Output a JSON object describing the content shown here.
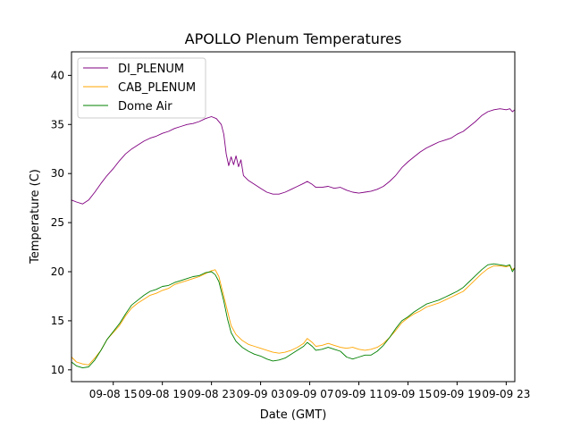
{
  "chart_data": {
    "type": "line",
    "title": "APOLLO Plenum Temperatures",
    "xlabel": "Date (GMT)",
    "ylabel": "Temperature (C)",
    "xlim": [
      11.6,
      47.7
    ],
    "ylim": [
      8.8,
      42.4
    ],
    "xticks": [
      {
        "value": 15,
        "label": "09-08 15"
      },
      {
        "value": 19,
        "label": "09-08 19"
      },
      {
        "value": 23,
        "label": "09-08 23"
      },
      {
        "value": 27,
        "label": "09-09 03"
      },
      {
        "value": 31,
        "label": "09-09 07"
      },
      {
        "value": 35,
        "label": "09-09 11"
      },
      {
        "value": 39,
        "label": "09-09 15"
      },
      {
        "value": 43,
        "label": "09-09 19"
      },
      {
        "value": 47,
        "label": "09-09 23"
      }
    ],
    "yticks": [
      10,
      15,
      20,
      25,
      30,
      35,
      40
    ],
    "legend_position": "top-left",
    "series": [
      {
        "name": "DI_PLENUM",
        "color": "#800080",
        "points": [
          [
            11.6,
            27.3
          ],
          [
            12.0,
            27.1
          ],
          [
            12.5,
            26.9
          ],
          [
            13.0,
            27.3
          ],
          [
            13.5,
            28.1
          ],
          [
            14.0,
            29.0
          ],
          [
            14.5,
            29.8
          ],
          [
            15.0,
            30.5
          ],
          [
            15.5,
            31.3
          ],
          [
            16.0,
            32.0
          ],
          [
            16.5,
            32.5
          ],
          [
            17.0,
            32.9
          ],
          [
            17.5,
            33.3
          ],
          [
            18.0,
            33.6
          ],
          [
            18.5,
            33.8
          ],
          [
            19.0,
            34.1
          ],
          [
            19.5,
            34.3
          ],
          [
            20.0,
            34.6
          ],
          [
            20.5,
            34.8
          ],
          [
            21.0,
            35.0
          ],
          [
            21.5,
            35.1
          ],
          [
            22.0,
            35.3
          ],
          [
            22.5,
            35.6
          ],
          [
            23.0,
            35.8
          ],
          [
            23.4,
            35.6
          ],
          [
            23.8,
            35.0
          ],
          [
            24.0,
            34.0
          ],
          [
            24.2,
            32.0
          ],
          [
            24.4,
            30.8
          ],
          [
            24.6,
            31.7
          ],
          [
            24.8,
            30.9
          ],
          [
            25.0,
            31.8
          ],
          [
            25.2,
            30.7
          ],
          [
            25.4,
            31.4
          ],
          [
            25.6,
            29.8
          ],
          [
            26.0,
            29.3
          ],
          [
            26.5,
            28.9
          ],
          [
            27.0,
            28.5
          ],
          [
            27.5,
            28.1
          ],
          [
            28.0,
            27.9
          ],
          [
            28.5,
            27.9
          ],
          [
            29.0,
            28.1
          ],
          [
            29.5,
            28.4
          ],
          [
            30.0,
            28.7
          ],
          [
            30.5,
            29.0
          ],
          [
            30.8,
            29.2
          ],
          [
            31.2,
            28.9
          ],
          [
            31.5,
            28.6
          ],
          [
            32.0,
            28.6
          ],
          [
            32.5,
            28.7
          ],
          [
            33.0,
            28.5
          ],
          [
            33.5,
            28.6
          ],
          [
            34.0,
            28.3
          ],
          [
            34.5,
            28.1
          ],
          [
            35.0,
            28.0
          ],
          [
            35.5,
            28.1
          ],
          [
            36.0,
            28.2
          ],
          [
            36.5,
            28.4
          ],
          [
            37.0,
            28.7
          ],
          [
            37.5,
            29.2
          ],
          [
            38.0,
            29.8
          ],
          [
            38.5,
            30.6
          ],
          [
            39.0,
            31.2
          ],
          [
            39.5,
            31.7
          ],
          [
            40.0,
            32.2
          ],
          [
            40.5,
            32.6
          ],
          [
            41.0,
            32.9
          ],
          [
            41.5,
            33.2
          ],
          [
            42.0,
            33.4
          ],
          [
            42.5,
            33.6
          ],
          [
            43.0,
            34.0
          ],
          [
            43.5,
            34.3
          ],
          [
            44.0,
            34.8
          ],
          [
            44.5,
            35.3
          ],
          [
            45.0,
            35.9
          ],
          [
            45.5,
            36.3
          ],
          [
            46.0,
            36.5
          ],
          [
            46.5,
            36.6
          ],
          [
            47.0,
            36.5
          ],
          [
            47.3,
            36.6
          ],
          [
            47.5,
            36.3
          ],
          [
            47.7,
            36.5
          ]
        ]
      },
      {
        "name": "CAB_PLENUM",
        "color": "#FFA500",
        "points": [
          [
            11.6,
            11.3
          ],
          [
            12.0,
            10.8
          ],
          [
            12.5,
            10.6
          ],
          [
            13.0,
            10.5
          ],
          [
            13.5,
            11.2
          ],
          [
            14.0,
            12.0
          ],
          [
            14.5,
            13.1
          ],
          [
            15.0,
            13.8
          ],
          [
            15.5,
            14.5
          ],
          [
            16.0,
            15.5
          ],
          [
            16.5,
            16.3
          ],
          [
            17.0,
            16.8
          ],
          [
            17.5,
            17.2
          ],
          [
            18.0,
            17.6
          ],
          [
            18.5,
            17.8
          ],
          [
            19.0,
            18.1
          ],
          [
            19.5,
            18.3
          ],
          [
            20.0,
            18.7
          ],
          [
            20.5,
            18.9
          ],
          [
            21.0,
            19.1
          ],
          [
            21.5,
            19.3
          ],
          [
            22.0,
            19.5
          ],
          [
            22.5,
            19.8
          ],
          [
            23.0,
            20.1
          ],
          [
            23.3,
            20.2
          ],
          [
            23.6,
            19.5
          ],
          [
            24.0,
            17.5
          ],
          [
            24.3,
            16.0
          ],
          [
            24.6,
            14.5
          ],
          [
            25.0,
            13.6
          ],
          [
            25.5,
            13.0
          ],
          [
            26.0,
            12.6
          ],
          [
            26.5,
            12.4
          ],
          [
            27.0,
            12.2
          ],
          [
            27.5,
            12.0
          ],
          [
            28.0,
            11.8
          ],
          [
            28.5,
            11.7
          ],
          [
            29.0,
            11.8
          ],
          [
            29.5,
            12.0
          ],
          [
            30.0,
            12.3
          ],
          [
            30.5,
            12.7
          ],
          [
            30.8,
            13.2
          ],
          [
            31.2,
            12.8
          ],
          [
            31.5,
            12.4
          ],
          [
            32.0,
            12.5
          ],
          [
            32.5,
            12.7
          ],
          [
            33.0,
            12.5
          ],
          [
            33.5,
            12.3
          ],
          [
            34.0,
            12.2
          ],
          [
            34.5,
            12.3
          ],
          [
            35.0,
            12.1
          ],
          [
            35.5,
            12.0
          ],
          [
            36.0,
            12.1
          ],
          [
            36.5,
            12.3
          ],
          [
            37.0,
            12.7
          ],
          [
            37.5,
            13.3
          ],
          [
            38.0,
            14.0
          ],
          [
            38.5,
            14.8
          ],
          [
            39.0,
            15.3
          ],
          [
            39.5,
            15.7
          ],
          [
            40.0,
            16.0
          ],
          [
            40.5,
            16.4
          ],
          [
            41.0,
            16.6
          ],
          [
            41.5,
            16.8
          ],
          [
            42.0,
            17.1
          ],
          [
            42.5,
            17.4
          ],
          [
            43.0,
            17.7
          ],
          [
            43.5,
            18.0
          ],
          [
            44.0,
            18.6
          ],
          [
            44.5,
            19.2
          ],
          [
            45.0,
            19.8
          ],
          [
            45.5,
            20.3
          ],
          [
            46.0,
            20.6
          ],
          [
            46.5,
            20.6
          ],
          [
            47.0,
            20.5
          ],
          [
            47.3,
            20.6
          ],
          [
            47.5,
            20.2
          ],
          [
            47.7,
            20.4
          ]
        ]
      },
      {
        "name": "Dome Air",
        "color": "#008000",
        "points": [
          [
            11.6,
            10.8
          ],
          [
            12.0,
            10.4
          ],
          [
            12.5,
            10.2
          ],
          [
            13.0,
            10.3
          ],
          [
            13.5,
            11.0
          ],
          [
            14.0,
            12.0
          ],
          [
            14.5,
            13.1
          ],
          [
            15.0,
            13.9
          ],
          [
            15.5,
            14.7
          ],
          [
            16.0,
            15.7
          ],
          [
            16.5,
            16.6
          ],
          [
            17.0,
            17.1
          ],
          [
            17.5,
            17.6
          ],
          [
            18.0,
            18.0
          ],
          [
            18.5,
            18.2
          ],
          [
            19.0,
            18.5
          ],
          [
            19.5,
            18.6
          ],
          [
            20.0,
            18.9
          ],
          [
            20.5,
            19.1
          ],
          [
            21.0,
            19.3
          ],
          [
            21.5,
            19.5
          ],
          [
            22.0,
            19.6
          ],
          [
            22.5,
            19.9
          ],
          [
            23.0,
            20.0
          ],
          [
            23.3,
            19.7
          ],
          [
            23.6,
            19.0
          ],
          [
            24.0,
            17.0
          ],
          [
            24.3,
            15.2
          ],
          [
            24.6,
            13.8
          ],
          [
            25.0,
            12.9
          ],
          [
            25.5,
            12.3
          ],
          [
            26.0,
            11.9
          ],
          [
            26.5,
            11.6
          ],
          [
            27.0,
            11.4
          ],
          [
            27.5,
            11.1
          ],
          [
            28.0,
            10.9
          ],
          [
            28.5,
            11.0
          ],
          [
            29.0,
            11.2
          ],
          [
            29.5,
            11.6
          ],
          [
            30.0,
            12.0
          ],
          [
            30.5,
            12.4
          ],
          [
            30.8,
            12.8
          ],
          [
            31.2,
            12.4
          ],
          [
            31.5,
            12.0
          ],
          [
            32.0,
            12.1
          ],
          [
            32.5,
            12.3
          ],
          [
            33.0,
            12.1
          ],
          [
            33.5,
            11.9
          ],
          [
            34.0,
            11.3
          ],
          [
            34.5,
            11.1
          ],
          [
            35.0,
            11.3
          ],
          [
            35.5,
            11.5
          ],
          [
            36.0,
            11.5
          ],
          [
            36.5,
            11.9
          ],
          [
            37.0,
            12.5
          ],
          [
            37.5,
            13.3
          ],
          [
            38.0,
            14.2
          ],
          [
            38.5,
            15.0
          ],
          [
            39.0,
            15.4
          ],
          [
            39.5,
            15.9
          ],
          [
            40.0,
            16.3
          ],
          [
            40.5,
            16.7
          ],
          [
            41.0,
            16.9
          ],
          [
            41.5,
            17.1
          ],
          [
            42.0,
            17.4
          ],
          [
            42.5,
            17.7
          ],
          [
            43.0,
            18.0
          ],
          [
            43.5,
            18.4
          ],
          [
            44.0,
            19.0
          ],
          [
            44.5,
            19.6
          ],
          [
            45.0,
            20.2
          ],
          [
            45.5,
            20.7
          ],
          [
            46.0,
            20.8
          ],
          [
            46.5,
            20.7
          ],
          [
            47.0,
            20.6
          ],
          [
            47.3,
            20.7
          ],
          [
            47.5,
            20.0
          ],
          [
            47.7,
            20.4
          ]
        ]
      }
    ]
  }
}
